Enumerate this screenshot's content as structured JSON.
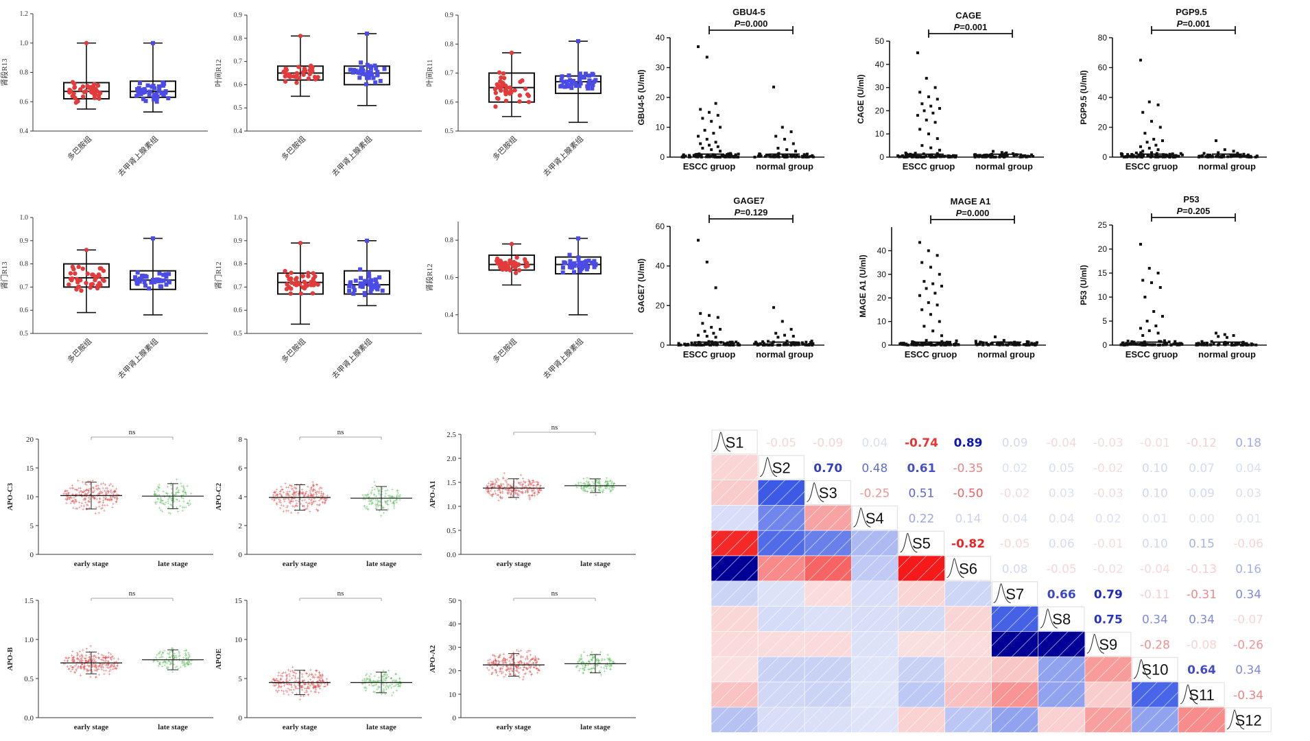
{
  "chart_data": [
    {
      "panel": "A1",
      "type": "box",
      "ylabel": "肾段R13",
      "ylim": [
        0.4,
        1.2
      ],
      "yticks": [
        "0.4",
        "0.6",
        "0.8",
        "1.0",
        "1.2"
      ],
      "categories": [
        "多巴胺组",
        "去甲肾上腺素组"
      ],
      "boxes": [
        {
          "min": 0.55,
          "q1": 0.62,
          "median": 0.67,
          "q3": 0.73,
          "max": 1.0
        },
        {
          "min": 0.53,
          "q1": 0.63,
          "median": 0.67,
          "q3": 0.74,
          "max": 1.0
        }
      ],
      "colors": [
        "#e23b3b",
        "#4b4be6"
      ]
    },
    {
      "panel": "A2",
      "type": "box",
      "ylabel": "叶间R12",
      "ylim": [
        0.4,
        0.9
      ],
      "yticks": [
        "0.4",
        "0.5",
        "0.6",
        "0.7",
        "0.8",
        "0.9"
      ],
      "categories": [
        "多巴胺组",
        "去甲肾上腺素组"
      ],
      "boxes": [
        {
          "min": 0.55,
          "q1": 0.62,
          "median": 0.65,
          "q3": 0.68,
          "max": 0.81
        },
        {
          "min": 0.51,
          "q1": 0.6,
          "median": 0.65,
          "q3": 0.68,
          "max": 0.82
        }
      ],
      "colors": [
        "#e23b3b",
        "#4b4be6"
      ]
    },
    {
      "panel": "A3",
      "type": "box",
      "ylabel": "叶间R11",
      "ylim": [
        0.5,
        0.9
      ],
      "yticks": [
        "0.5",
        "0.6",
        "0.7",
        "0.8",
        "0.9"
      ],
      "categories": [
        "多巴胺组",
        "去甲肾上腺素组"
      ],
      "boxes": [
        {
          "min": 0.55,
          "q1": 0.6,
          "median": 0.65,
          "q3": 0.7,
          "max": 0.77
        },
        {
          "min": 0.53,
          "q1": 0.63,
          "median": 0.67,
          "q3": 0.69,
          "max": 0.81
        }
      ],
      "colors": [
        "#e23b3b",
        "#4b4be6"
      ]
    },
    {
      "panel": "A4",
      "type": "box",
      "ylabel": "肾门R13",
      "ylim": [
        0.5,
        1.0
      ],
      "yticks": [
        "0.5",
        "0.6",
        "0.7",
        "0.8",
        "0.9",
        "1.0"
      ],
      "categories": [
        "多巴胺组",
        "去甲肾上腺素组"
      ],
      "boxes": [
        {
          "min": 0.59,
          "q1": 0.7,
          "median": 0.74,
          "q3": 0.8,
          "max": 0.86
        },
        {
          "min": 0.58,
          "q1": 0.69,
          "median": 0.73,
          "q3": 0.77,
          "max": 0.91
        }
      ],
      "colors": [
        "#e23b3b",
        "#4b4be6"
      ]
    },
    {
      "panel": "A5",
      "type": "box",
      "ylabel": "肾门R12",
      "ylim": [
        0.5,
        1.0
      ],
      "yticks": [
        "0.5",
        "0.6",
        "0.7",
        "0.8",
        "0.9",
        "1.0"
      ],
      "categories": [
        "多巴胺组",
        "去甲肾上腺素组"
      ],
      "boxes": [
        {
          "min": 0.54,
          "q1": 0.67,
          "median": 0.72,
          "q3": 0.76,
          "max": 0.89
        },
        {
          "min": 0.62,
          "q1": 0.67,
          "median": 0.71,
          "q3": 0.77,
          "max": 0.9
        }
      ],
      "colors": [
        "#e23b3b",
        "#4b4be6"
      ]
    },
    {
      "panel": "A6",
      "type": "box",
      "ylabel": "肾段R12",
      "ylim": [
        0.3,
        0.9
      ],
      "yticks": [
        "0.4",
        "0.6",
        "0.8"
      ],
      "categories": [
        "多巴胺组",
        "去甲肾上腺素组"
      ],
      "boxes": [
        {
          "min": 0.56,
          "q1": 0.64,
          "median": 0.67,
          "q3": 0.72,
          "max": 0.78
        },
        {
          "min": 0.4,
          "q1": 0.62,
          "median": 0.67,
          "q3": 0.71,
          "max": 0.81
        }
      ],
      "colors": [
        "#e23b3b",
        "#4b4be6"
      ]
    },
    {
      "panel": "B1",
      "type": "scatter",
      "title": "GBU4-5",
      "ylabel": "GBU4-5 (U/ml)",
      "ylim": [
        0,
        40
      ],
      "yticks": [
        "0",
        "10",
        "20",
        "30",
        "40"
      ],
      "categories": [
        "ESCC gruop",
        "normal group"
      ],
      "p_prefix": "P",
      "p_value": "=0.000",
      "highs": [
        [
          37,
          33.5,
          18,
          16,
          15,
          14,
          13,
          12,
          10,
          9,
          8,
          7,
          6,
          5,
          4.5,
          4,
          3.5,
          3,
          2.5,
          2
        ],
        [
          23.5,
          10,
          8.5,
          7,
          6,
          4.5,
          3,
          2.5,
          2
        ]
      ]
    },
    {
      "panel": "B2",
      "type": "scatter",
      "title": "CAGE",
      "ylabel": "CAGE (U/ml)",
      "ylim": [
        0,
        50
      ],
      "yticks": [
        "0",
        "10",
        "20",
        "30",
        "40",
        "50"
      ],
      "categories": [
        "ESCC gruop",
        "normal group"
      ],
      "p_prefix": "P",
      "p_value": "=0.001",
      "highs": [
        [
          45,
          34,
          30,
          28,
          26,
          25,
          23,
          22,
          21,
          20,
          19,
          18,
          16,
          15,
          12,
          10,
          8,
          5,
          4,
          3
        ],
        [
          2.5,
          2
        ]
      ]
    },
    {
      "panel": "B3",
      "type": "scatter",
      "title": "PGP9.5",
      "ylabel": "PGP9.5 (U/ml)",
      "ylim": [
        0,
        80
      ],
      "yticks": [
        "0",
        "20",
        "40",
        "60",
        "80"
      ],
      "categories": [
        "ESCC gruop",
        "normal group"
      ],
      "p_prefix": "P",
      "p_value": "=0.001",
      "highs": [
        [
          65,
          37,
          35,
          30,
          24,
          20,
          16,
          12,
          11,
          10,
          8,
          7,
          6,
          5,
          4,
          3
        ],
        [
          11,
          5,
          4,
          3
        ]
      ]
    },
    {
      "panel": "B4",
      "type": "scatter",
      "title": "GAGE7",
      "ylabel": "GAGE7 (U/ml)",
      "ylim": [
        0,
        60
      ],
      "yticks": [
        "0",
        "20",
        "40",
        "60"
      ],
      "categories": [
        "ESCC gruop",
        "normal group"
      ],
      "p_prefix": "P",
      "p_value": "=0.129",
      "highs": [
        [
          53,
          42,
          29,
          16,
          15,
          14,
          11,
          9,
          8,
          7,
          6,
          5,
          4.5,
          4
        ],
        [
          19,
          12,
          8,
          6,
          5,
          4.5,
          4
        ]
      ]
    },
    {
      "panel": "B5",
      "type": "scatter",
      "title": "MAGE A1",
      "ylabel": "MAGE A1 (U/ml)",
      "ylim": [
        0,
        50
      ],
      "yticks": [
        "0",
        "10",
        "20",
        "30",
        "40"
      ],
      "categories": [
        "ESCC gruop",
        "normal group"
      ],
      "p_prefix": "P",
      "p_value": "=0.000",
      "highs": [
        [
          43.5,
          40,
          38,
          35,
          33,
          30,
          27,
          26,
          25,
          24,
          22,
          21,
          18,
          17,
          15,
          13,
          10,
          8,
          6,
          4,
          2
        ],
        [
          3.5,
          2
        ]
      ]
    },
    {
      "panel": "B6",
      "type": "scatter",
      "title": "P53",
      "ylabel": "P53 (U/ml)",
      "ylim": [
        0,
        25
      ],
      "yticks": [
        "0",
        "5",
        "10",
        "15",
        "20",
        "25"
      ],
      "categories": [
        "ESCC gruop",
        "normal group"
      ],
      "p_prefix": "P",
      "p_value": "=0.205",
      "highs": [
        [
          21,
          16,
          15,
          13.5,
          13,
          12,
          10,
          7,
          6,
          5,
          4,
          3.5,
          3,
          2.5,
          2
        ],
        [
          2.5,
          2.2,
          2,
          1.8,
          1.6
        ]
      ]
    },
    {
      "panel": "C1",
      "type": "scatter",
      "ylabel": "APO-C3",
      "ylim": [
        0,
        20
      ],
      "yticks": [
        "0",
        "5",
        "10",
        "15",
        "20"
      ],
      "categories": [
        "early stage",
        "late stage"
      ],
      "sig": "ns",
      "means": [
        10.2,
        10.1
      ],
      "spread": [
        [
          3,
          18.5
        ],
        [
          3.5,
          18
        ]
      ],
      "colors": [
        "#e23b3b",
        "#4cbb4c"
      ]
    },
    {
      "panel": "C2",
      "type": "scatter",
      "ylabel": "APO-C2",
      "ylim": [
        0,
        8
      ],
      "yticks": [
        "0",
        "2",
        "4",
        "6",
        "8"
      ],
      "categories": [
        "early stage",
        "late stage"
      ],
      "sig": "ns",
      "means": [
        3.95,
        3.9
      ],
      "spread": [
        [
          1.4,
          7.3
        ],
        [
          1.6,
          7
        ]
      ],
      "colors": [
        "#e23b3b",
        "#4cbb4c"
      ]
    },
    {
      "panel": "C3",
      "type": "scatter",
      "ylabel": "APO-A1",
      "ylim": [
        0,
        2.5
      ],
      "yticks": [
        "0.0",
        "0.5",
        "1.0",
        "1.5",
        "2.0",
        "2.5"
      ],
      "categories": [
        "early stage",
        "late stage"
      ],
      "sig": "ns",
      "means": [
        1.38,
        1.43
      ],
      "spread": [
        [
          0.7,
          2.0
        ],
        [
          1.0,
          1.95
        ]
      ],
      "colors": [
        "#e23b3b",
        "#4cbb4c"
      ]
    },
    {
      "panel": "C4",
      "type": "scatter",
      "ylabel": "APO-B",
      "ylim": [
        0,
        1.5
      ],
      "yticks": [
        "0.0",
        "0.5",
        "1.0",
        "1.5"
      ],
      "categories": [
        "early stage",
        "late stage"
      ],
      "sig": "ns",
      "means": [
        0.7,
        0.74
      ],
      "spread": [
        [
          0.32,
          1.25
        ],
        [
          0.35,
          1.2
        ]
      ],
      "colors": [
        "#e23b3b",
        "#4cbb4c"
      ]
    },
    {
      "panel": "C5",
      "type": "scatter",
      "ylabel": "APOE",
      "ylim": [
        0,
        15
      ],
      "yticks": [
        "0",
        "5",
        "10",
        "15"
      ],
      "categories": [
        "early stage",
        "late stage"
      ],
      "sig": "ns",
      "means": [
        4.5,
        4.5
      ],
      "spread": [
        [
          1.8,
          12.2
        ],
        [
          2.2,
          11
        ]
      ],
      "colors": [
        "#e23b3b",
        "#4cbb4c"
      ]
    },
    {
      "panel": "C6",
      "type": "scatter",
      "ylabel": "APO-A2",
      "ylim": [
        0,
        50
      ],
      "yticks": [
        "0",
        "10",
        "20",
        "30",
        "40",
        "50"
      ],
      "categories": [
        "early stage",
        "late stage"
      ],
      "sig": "ns",
      "means": [
        22.5,
        23
      ],
      "spread": [
        [
          12,
          44
        ],
        [
          12,
          38
        ]
      ],
      "colors": [
        "#e23b3b",
        "#4cbb4c"
      ]
    },
    {
      "panel": "D",
      "type": "heatmap",
      "labels": [
        "S1",
        "S2",
        "S3",
        "S4",
        "S5",
        "S6",
        "S7",
        "S8",
        "S9",
        "S10",
        "S11",
        "S12"
      ],
      "upper": [
        [
          "-0.05",
          "-0.09",
          "0.04",
          "-0.74",
          "0.89",
          "0.09",
          "-0.04",
          "-0.03",
          "-0.01",
          "-0.12",
          "0.18"
        ],
        [
          "0.70",
          "0.48",
          "0.61",
          "-0.35",
          "0.02",
          "0.05",
          "-0.02",
          "0.10",
          "0.07",
          "0.04"
        ],
        [
          "-0.25",
          "0.51",
          "-0.50",
          "-0.02",
          "0.03",
          "-0.03",
          "0.10",
          "0.09",
          "0.03"
        ],
        [
          "0.22",
          "0.14",
          "0.04",
          "0.04",
          "0.02",
          "0.01",
          "0.00",
          "0.01"
        ],
        [
          "-0.82",
          "-0.05",
          "0.06",
          "-0.01",
          "0.10",
          "0.15",
          "-0.06"
        ],
        [
          "0.08",
          "-0.05",
          "-0.02",
          "-0.04",
          "-0.13",
          "0.16"
        ],
        [
          "0.66",
          "0.79",
          "-0.11",
          "-0.31",
          "0.34"
        ],
        [
          "0.75",
          "0.34",
          "0.34",
          "-0.07"
        ],
        [
          "-0.28",
          "-0.08",
          "-0.26"
        ],
        [
          "0.64",
          "0.34"
        ],
        [
          "-0.34"
        ]
      ]
    }
  ]
}
